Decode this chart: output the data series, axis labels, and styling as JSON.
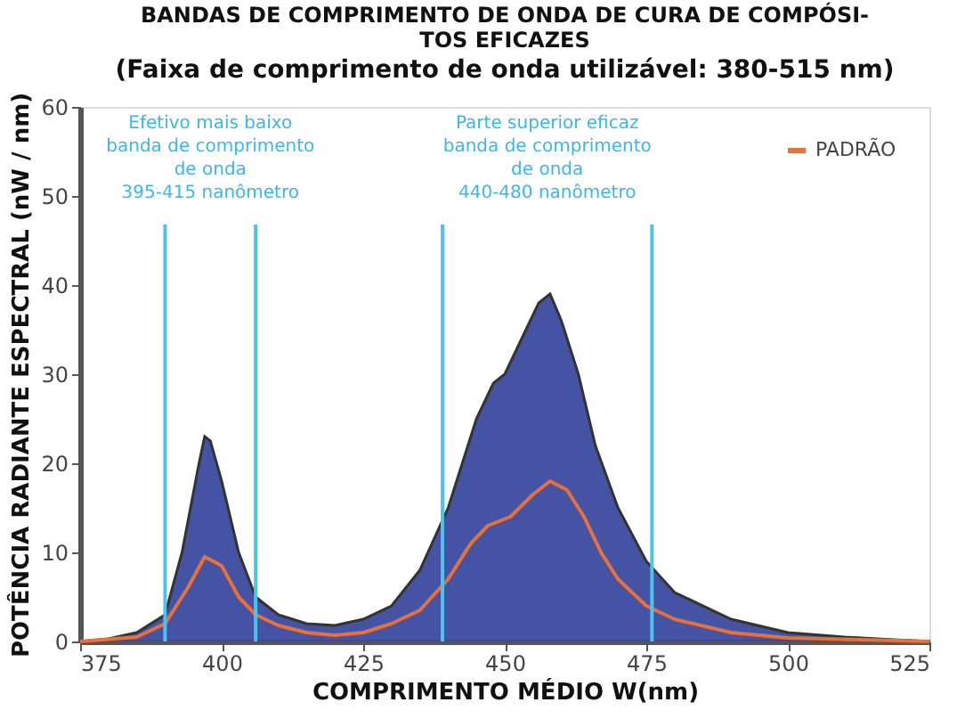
{
  "chart_data": {
    "type": "area",
    "title": "BANDAS DE COMPRIMENTO DE ONDA DE CURA DE COMPÓSI-\nTOS EFICAZES",
    "subtitle": "(Faixa de comprimento de onda utilizável: 380-515 nm)",
    "xlabel": "COMPRIMENTO MÉDIO W(nm)",
    "ylabel": "POTÊNCIA RADIANTE ESPECTRAL (nW / nm)",
    "xlim": [
      375,
      525
    ],
    "xticks": [
      375,
      400,
      425,
      450,
      475,
      500,
      525
    ],
    "ylim": [
      0,
      60
    ],
    "yticks": [
      0,
      10,
      20,
      30,
      40,
      50,
      60
    ],
    "grid": false,
    "legend": "top right",
    "series": [
      {
        "color": "#3b4aa0",
        "x": [
          375,
          380,
          385,
          390,
          393,
          396,
          397,
          398,
          400,
          403,
          406,
          410,
          415,
          420,
          425,
          430,
          435,
          440,
          445,
          448,
          450,
          453,
          456,
          458,
          460,
          463,
          466,
          470,
          475,
          480,
          490,
          500,
          510,
          525
        ],
        "values": [
          0,
          0.3,
          1,
          3,
          10,
          20,
          23,
          22.5,
          18,
          10,
          5,
          3,
          2,
          1.8,
          2.5,
          4,
          8,
          15,
          25,
          29,
          30,
          34,
          38,
          39,
          36,
          30,
          22,
          15,
          9,
          5.5,
          2.5,
          1,
          0.5,
          0
        ]
      },
      {
        "type": "line",
        "name": "PADRÃO",
        "color": "#e8703a",
        "x": [
          375,
          385,
          390,
          394,
          397,
          400,
          403,
          406,
          410,
          415,
          420,
          425,
          430,
          435,
          440,
          444,
          447,
          451,
          455,
          458,
          461,
          464,
          467,
          470,
          475,
          480,
          490,
          500,
          525
        ],
        "values": [
          0,
          0.5,
          2,
          6,
          9.5,
          8.5,
          5,
          3,
          1.8,
          1,
          0.7,
          1,
          2,
          3.5,
          7,
          11,
          13,
          14,
          16.5,
          18,
          17,
          14,
          10,
          7,
          4,
          2.5,
          1,
          0.4,
          0
        ]
      }
    ],
    "ref_lines": [
      {
        "axis": "x",
        "value": 390,
        "color": "#4cc3ee"
      },
      {
        "axis": "x",
        "value": 406,
        "color": "#4cc3ee"
      },
      {
        "axis": "x",
        "value": 439,
        "color": "#4cc3ee"
      },
      {
        "axis": "x",
        "value": 476,
        "color": "#4cc3ee"
      }
    ],
    "annotations": [
      "Efetivo mais baixo\nbanda de comprimento\nde onda\n395-415 nanômetro",
      "Parte superior eficaz\nbanda de comprimento\nde onda\n440-480 nanômetro"
    ]
  }
}
